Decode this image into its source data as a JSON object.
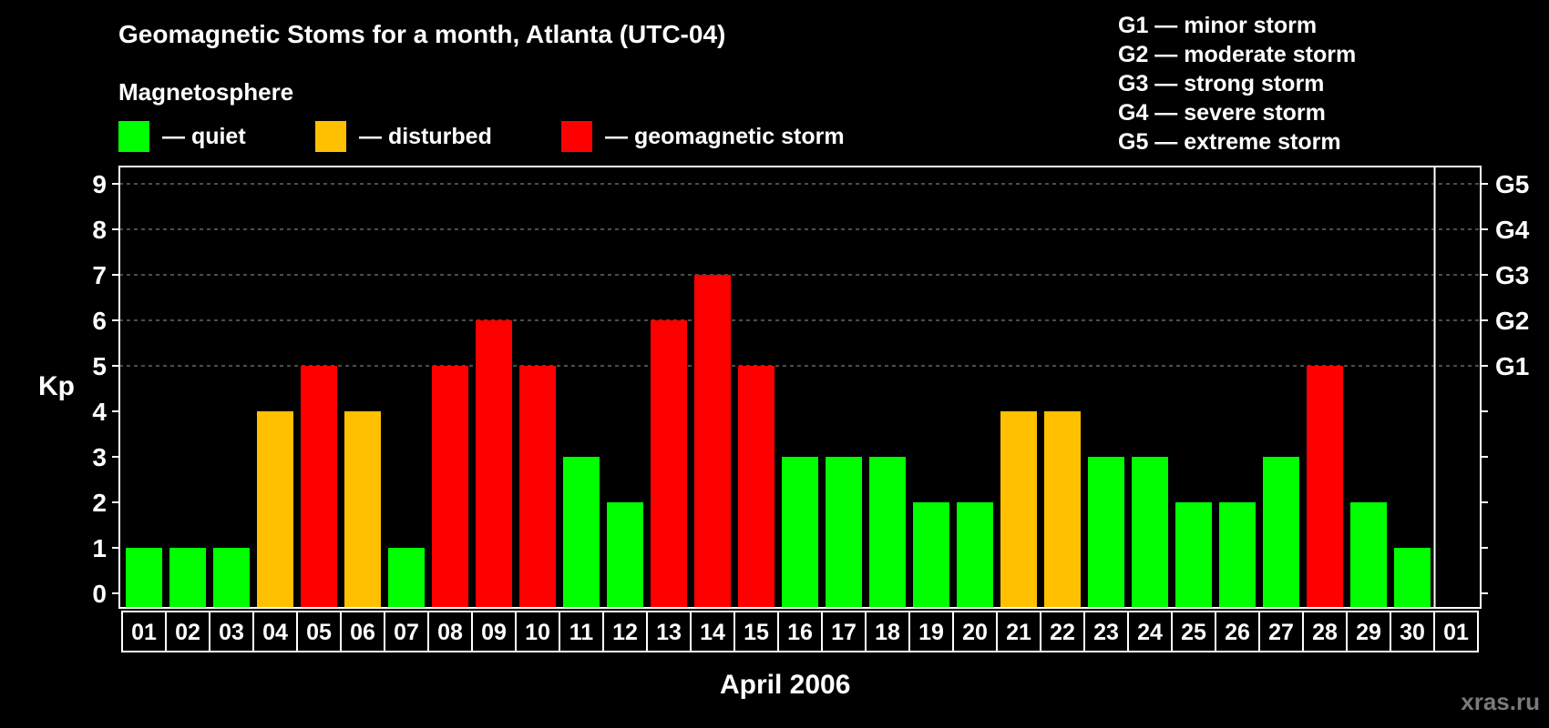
{
  "title": "Geomagnetic Stoms for a month, Atlanta (UTC-04)",
  "legend": {
    "heading": "Magnetosphere",
    "items": [
      {
        "label": "— quiet",
        "color": "#00ff00"
      },
      {
        "label": "— disturbed",
        "color": "#ffc000"
      },
      {
        "label": "— geomagnetic storm",
        "color": "#ff0000"
      }
    ]
  },
  "storm_scale": [
    "G1 — minor storm",
    "G2 — moderate storm",
    "G3 — strong storm",
    "G4 — severe storm",
    "G5 — extreme storm"
  ],
  "watermark": "xras.ru",
  "chart_data": {
    "type": "bar",
    "xlabel": "April 2006",
    "ylabel": "Kp",
    "ylim": [
      0,
      9
    ],
    "yticks": [
      0,
      1,
      2,
      3,
      4,
      5,
      6,
      7,
      8,
      9
    ],
    "right_axis_labels": [
      {
        "y": 5,
        "label": "G1"
      },
      {
        "y": 6,
        "label": "G2"
      },
      {
        "y": 7,
        "label": "G3"
      },
      {
        "y": 8,
        "label": "G4"
      },
      {
        "y": 9,
        "label": "G5"
      }
    ],
    "grid": "dashed horizontal lines at Kp 5 to 9",
    "categories": [
      "01",
      "02",
      "03",
      "04",
      "05",
      "06",
      "07",
      "08",
      "09",
      "10",
      "11",
      "12",
      "13",
      "14",
      "15",
      "16",
      "17",
      "18",
      "19",
      "20",
      "21",
      "22",
      "23",
      "24",
      "25",
      "26",
      "27",
      "28",
      "29",
      "30",
      "01"
    ],
    "values": [
      1,
      1,
      1,
      4,
      5,
      4,
      1,
      5,
      6,
      5,
      3,
      2,
      6,
      7,
      5,
      3,
      3,
      3,
      2,
      2,
      4,
      4,
      3,
      3,
      2,
      2,
      3,
      5,
      2,
      1,
      null
    ],
    "color_rule": {
      "quiet": "Kp ≤ 3",
      "disturbed": "Kp = 4",
      "geomagnetic storm": "Kp ≥ 5"
    },
    "colors": {
      "quiet": "#00ff00",
      "disturbed": "#ffc000",
      "storm": "#ff0000"
    }
  }
}
